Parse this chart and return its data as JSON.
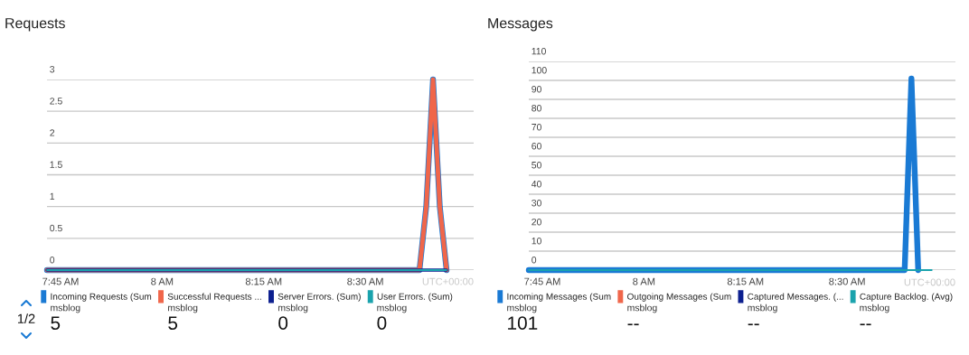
{
  "chart_data": [
    {
      "type": "line",
      "title": "Requests",
      "xlim": [
        7.71667,
        8.76667
      ],
      "ylim": [
        0,
        3
      ],
      "xticks": [
        {
          "value": 7.75,
          "label": "7:45 AM"
        },
        {
          "value": 8.0,
          "label": "8 AM"
        },
        {
          "value": 8.25,
          "label": "8:15 AM"
        },
        {
          "value": 8.5,
          "label": "8:30 AM"
        }
      ],
      "yticks": [
        0,
        0.5,
        1,
        1.5,
        2,
        2.5,
        3
      ],
      "grid": "y",
      "legend": "bottom",
      "marker": "none",
      "line_style": "solid",
      "x": [
        7.71667,
        8.63333,
        8.65,
        8.66667,
        8.68333,
        8.7
      ],
      "series": [
        {
          "name": "Incoming Requests (Sum",
          "color": "#1a7ad4",
          "values": [
            0,
            0,
            1,
            3,
            1,
            0
          ]
        },
        {
          "name": "Successful Requests ...",
          "color": "#f0664a",
          "values": [
            0,
            0,
            1,
            3,
            1,
            0
          ]
        },
        {
          "name": "Server Errors. (Sum)",
          "color": "#0c1f8f",
          "values": [
            0,
            0,
            0,
            0,
            0,
            0
          ]
        },
        {
          "name": "User Errors. (Sum)",
          "color": "#1aa3ad",
          "values": [
            0,
            0,
            0,
            0,
            0,
            0
          ]
        }
      ],
      "annotations": [
        "UTC+00:00",
        "msblog",
        "5",
        "msblog",
        "5",
        "msblog",
        "0",
        "msblog",
        "0",
        "1/2"
      ]
    },
    {
      "type": "line",
      "title": "Messages",
      "xlim": [
        7.71667,
        8.76667
      ],
      "ylim": [
        0,
        110
      ],
      "xticks": [
        {
          "value": 7.75,
          "label": "7:45 AM"
        },
        {
          "value": 8.0,
          "label": "8 AM"
        },
        {
          "value": 8.25,
          "label": "8:15 AM"
        },
        {
          "value": 8.5,
          "label": "8:30 AM"
        }
      ],
      "yticks": [
        0,
        10,
        20,
        30,
        40,
        50,
        60,
        70,
        80,
        90,
        100,
        110
      ],
      "grid": "y",
      "legend": "bottom",
      "marker": "none",
      "line_style": "solid",
      "series": [
        {
          "name": "Incoming Messages (Sum",
          "color": "#1a7ad4",
          "x": [
            7.71667,
            8.64167,
            8.65833,
            8.675
          ],
          "values": [
            0,
            0,
            101,
            0
          ]
        },
        {
          "name": "Outgoing Messages (Sum",
          "color": "#f0664a"
        },
        {
          "name": "Captured Messages. (...",
          "color": "#0c1f8f"
        },
        {
          "name": "Capture Backlog. (Avg)",
          "color": "#1aa3ad",
          "x": [
            7.71667,
            8.70833
          ],
          "values": [
            0,
            0
          ]
        }
      ],
      "annotations": [
        "UTC+00:00",
        "msblog",
        "101",
        "msblog",
        "--",
        "msblog",
        "--",
        "msblog",
        "--"
      ]
    }
  ]
}
